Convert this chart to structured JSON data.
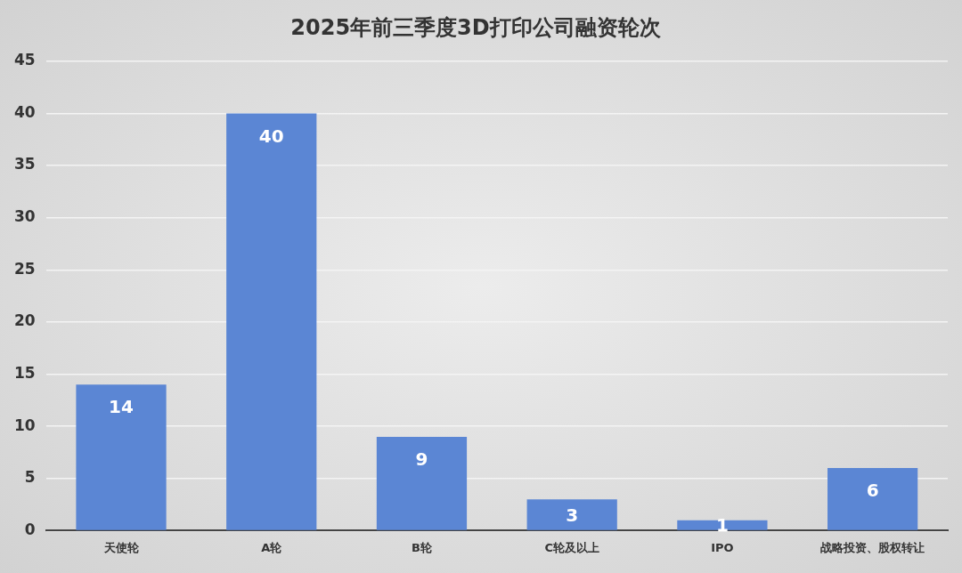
{
  "chart_data": {
    "type": "bar",
    "title": "2025年前三季度3D打印公司融资轮次",
    "categories": [
      "天使轮",
      "A轮",
      "B轮",
      "C轮及以上",
      "IPO",
      "战略投资、股权转让"
    ],
    "values": [
      14,
      40,
      9,
      3,
      1,
      6
    ],
    "color": "#5b86d4",
    "ylim": [
      0,
      45
    ],
    "yticks": [
      0,
      5,
      10,
      15,
      20,
      25,
      30,
      35,
      40,
      45
    ],
    "grid": "y",
    "data_labels": true,
    "legend": false
  }
}
